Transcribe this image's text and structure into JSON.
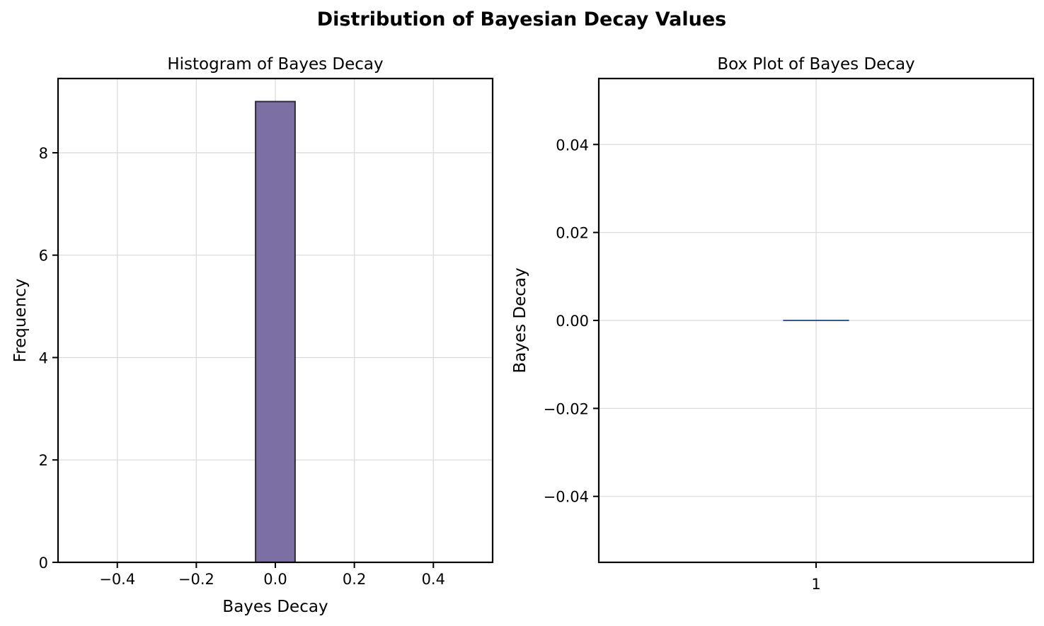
{
  "title": "Distribution of Bayesian Decay Values",
  "chart_data": [
    {
      "type": "bar",
      "title": "Histogram of Bayes Decay",
      "xlabel": "Bayes Decay",
      "ylabel": "Frequency",
      "xlim": [
        -0.55,
        0.55
      ],
      "ylim": [
        0,
        9.45
      ],
      "xticks": [
        -0.4,
        -0.2,
        0.0,
        0.2,
        0.4
      ],
      "xtick_labels": [
        "−0.4",
        "−0.2",
        "0.0",
        "0.2",
        "0.4"
      ],
      "yticks": [
        0,
        2,
        4,
        6,
        8
      ],
      "ytick_labels": [
        "0",
        "2",
        "4",
        "6",
        "8"
      ],
      "bins": [
        {
          "x0": -0.5,
          "x1": -0.4,
          "count": 0
        },
        {
          "x0": -0.4,
          "x1": -0.3,
          "count": 0
        },
        {
          "x0": -0.3,
          "x1": -0.2,
          "count": 0
        },
        {
          "x0": -0.2,
          "x1": -0.1,
          "count": 0
        },
        {
          "x0": -0.1,
          "x1": -0.05,
          "count": 0
        },
        {
          "x0": -0.05,
          "x1": 0.05,
          "count": 9
        },
        {
          "x0": 0.05,
          "x1": 0.1,
          "count": 0
        },
        {
          "x0": 0.1,
          "x1": 0.2,
          "count": 0
        },
        {
          "x0": 0.2,
          "x1": 0.3,
          "count": 0
        },
        {
          "x0": 0.3,
          "x1": 0.4,
          "count": 0
        },
        {
          "x0": 0.4,
          "x1": 0.5,
          "count": 0
        }
      ],
      "bar_color": "#7b6fa3",
      "edge_color": "#2e2a3a",
      "grid": true
    },
    {
      "type": "box",
      "title": "Box Plot of Bayes Decay",
      "xlabel": "",
      "ylabel": "Bayes Decay",
      "xlim": [
        0.5,
        1.5
      ],
      "ylim": [
        -0.055,
        0.055
      ],
      "xticks": [
        1
      ],
      "xtick_labels": [
        "1"
      ],
      "yticks": [
        -0.04,
        -0.02,
        0.0,
        0.02,
        0.04
      ],
      "ytick_labels": [
        "−0.04",
        "−0.02",
        "0.00",
        "0.02",
        "0.04"
      ],
      "boxes": [
        {
          "position": 1,
          "min": 0.0,
          "q1": 0.0,
          "median": 0.0,
          "q3": 0.0,
          "max": 0.0
        }
      ],
      "box_color": "#3a55a0",
      "grid": true
    }
  ]
}
